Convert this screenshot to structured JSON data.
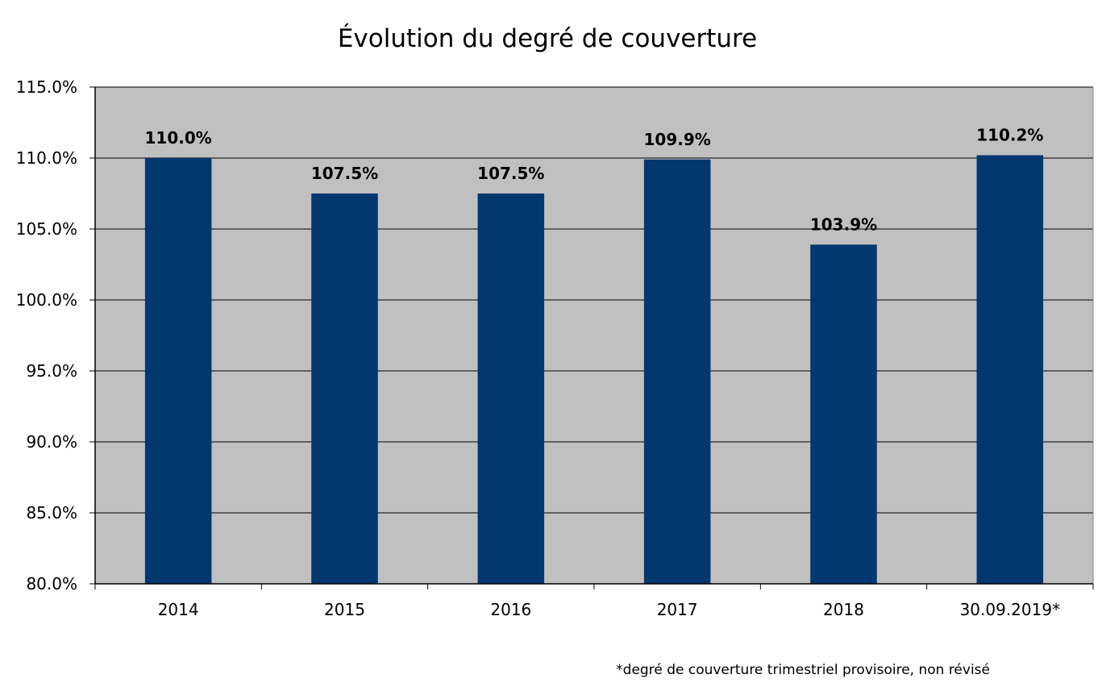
{
  "chart_data": {
    "type": "bar",
    "title": "Évolution du degré de couverture",
    "xlabel": "",
    "ylabel": "",
    "categories": [
      "2014",
      "2015",
      "2016",
      "2017",
      "2018",
      "30.09.2019*"
    ],
    "values": [
      110.0,
      107.5,
      107.5,
      109.9,
      103.9,
      110.2
    ],
    "data_labels": [
      "110.0%",
      "107.5%",
      "107.5%",
      "109.9%",
      "103.9%",
      "110.2%"
    ],
    "ylim": [
      80.0,
      115.0
    ],
    "yticks": [
      80.0,
      85.0,
      90.0,
      95.0,
      100.0,
      105.0,
      110.0,
      115.0
    ],
    "ytick_labels": [
      "80.0%",
      "85.0%",
      "90.0%",
      "95.0%",
      "100.0%",
      "105.0%",
      "110.0%",
      "115.0%"
    ],
    "grid": true,
    "legend": "none",
    "footnote": "*degré de couverture trimestriel provisoire, non révisé",
    "colors": {
      "bar": "#033770",
      "plot_background": "#c0c0c0",
      "gridline": "#000000",
      "axis": "#000000"
    }
  }
}
